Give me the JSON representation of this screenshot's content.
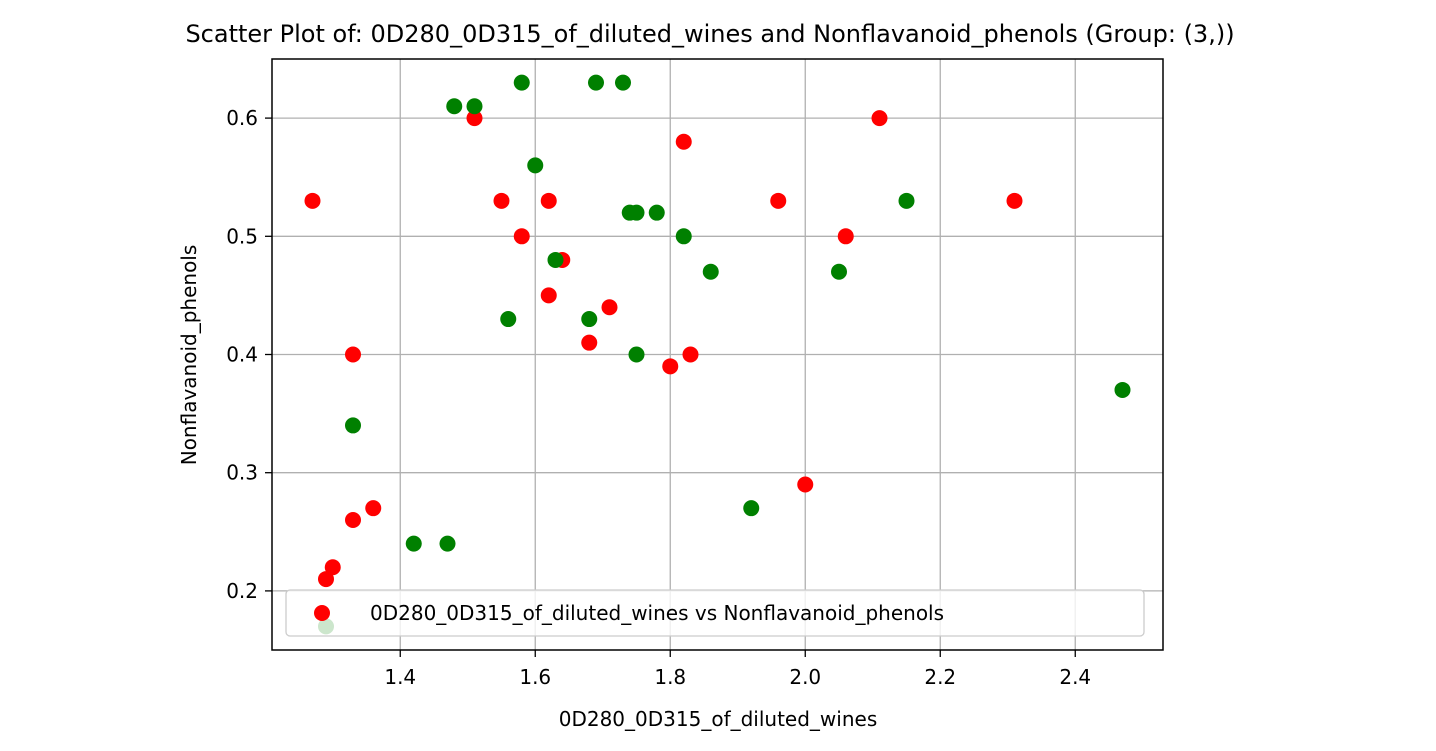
{
  "chart_data": {
    "type": "scatter",
    "title": "Scatter Plot of: 0D280_0D315_of_diluted_wines and Nonflavanoid_phenols (Group: (3,))",
    "xlabel": "0D280_0D315_of_diluted_wines",
    "ylabel": "Nonflavanoid_phenols",
    "xlim": [
      1.21,
      2.53
    ],
    "ylim": [
      0.15,
      0.65
    ],
    "xticks": [
      1.4,
      1.6,
      1.8,
      2.0,
      2.2,
      2.4
    ],
    "xtick_labels": [
      "1.4",
      "1.6",
      "1.8",
      "2.0",
      "2.2",
      "2.4"
    ],
    "yticks": [
      0.2,
      0.3,
      0.4,
      0.5,
      0.6
    ],
    "ytick_labels": [
      "0.2",
      "0.3",
      "0.4",
      "0.5",
      "0.6"
    ],
    "grid": true,
    "legend": {
      "position": "bottom",
      "entries": [
        "0D280_0D315_of_diluted_wines vs Nonflavanoid_phenols"
      ]
    },
    "colors": {
      "red": "#ff0000",
      "green": "#008000"
    },
    "series": [
      {
        "name": "0D280_0D315_of_diluted_wines vs Nonflavanoid_phenols",
        "color": "#ff0000",
        "x": [
          1.27,
          1.51,
          1.55,
          1.58,
          1.62,
          1.62,
          1.64,
          1.68,
          1.71,
          1.8,
          1.82,
          1.83,
          1.96,
          2.0,
          2.06,
          2.11,
          2.31,
          1.33,
          1.36,
          1.33,
          1.3,
          1.29
        ],
        "y": [
          0.53,
          0.6,
          0.53,
          0.5,
          0.53,
          0.45,
          0.48,
          0.41,
          0.44,
          0.39,
          0.58,
          0.4,
          0.53,
          0.29,
          0.5,
          0.6,
          0.53,
          0.4,
          0.27,
          0.26,
          0.22,
          0.21
        ]
      },
      {
        "color": "#008000",
        "x": [
          1.48,
          1.51,
          1.58,
          1.6,
          1.69,
          1.73,
          1.74,
          1.75,
          1.78,
          1.82,
          1.86,
          2.05,
          2.15,
          1.63,
          1.56,
          1.68,
          1.75,
          1.33,
          1.42,
          1.47,
          1.92,
          2.47,
          1.29
        ],
        "y": [
          0.61,
          0.61,
          0.63,
          0.56,
          0.63,
          0.63,
          0.52,
          0.52,
          0.52,
          0.5,
          0.47,
          0.47,
          0.53,
          0.48,
          0.43,
          0.43,
          0.4,
          0.34,
          0.24,
          0.24,
          0.27,
          0.37,
          0.17
        ]
      }
    ]
  }
}
